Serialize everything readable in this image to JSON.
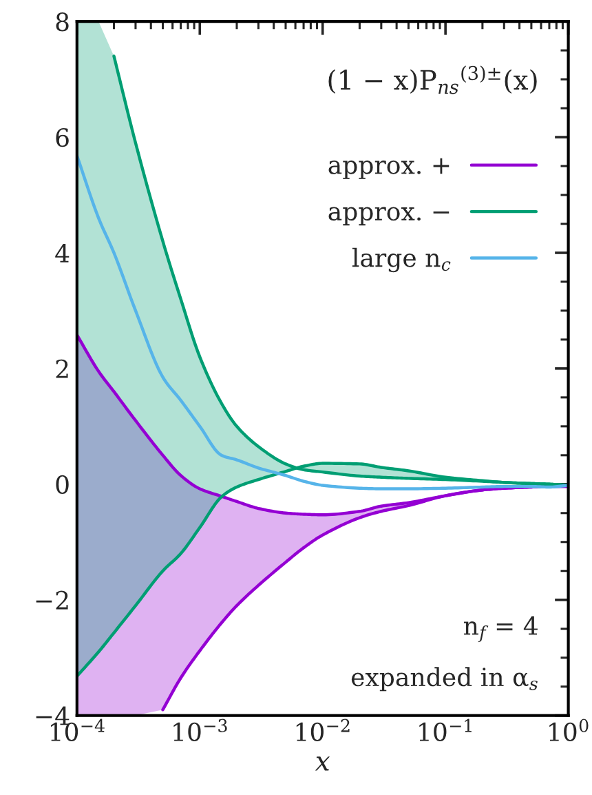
{
  "chart_data": {
    "type": "line",
    "xlabel": "x",
    "x": [
      0.0001,
      0.00015,
      0.0002,
      0.0003,
      0.0005,
      0.0007,
      0.001,
      0.0015,
      0.002,
      0.003,
      0.005,
      0.007,
      0.01,
      0.02,
      0.03,
      0.05,
      0.1,
      0.2,
      0.3,
      0.5,
      0.7,
      1
    ],
    "series": [
      {
        "name": "approx. +",
        "color": "#9400d3",
        "values": [
          2.58,
          1.95,
          1.6,
          1.1,
          0.5,
          0.15,
          -0.08,
          -0.21,
          -0.3,
          -0.42,
          -0.5,
          -0.52,
          -0.53,
          -0.47,
          -0.38,
          -0.32,
          -0.2,
          -0.1,
          -0.07,
          -0.05,
          -0.04,
          -0.04
        ],
        "upper": [
          2.58,
          1.95,
          1.6,
          1.1,
          0.5,
          0.15,
          -0.08,
          -0.21,
          -0.3,
          -0.42,
          -0.5,
          -0.52,
          -0.53,
          -0.47,
          -0.38,
          -0.32,
          -0.2,
          -0.1,
          -0.07,
          -0.05,
          -0.04,
          -0.04
        ],
        "lower": [
          -4,
          -4,
          -4,
          -4,
          -3.9,
          -3.35,
          -2.88,
          -2.4,
          -2.1,
          -1.75,
          -1.35,
          -1.1,
          -0.88,
          -0.58,
          -0.47,
          -0.37,
          -0.2,
          -0.1,
          -0.07,
          -0.05,
          -0.04,
          -0.04
        ]
      },
      {
        "color": "#9400d3",
        "values": [
          null,
          null,
          null,
          null,
          -3.9,
          -3.35,
          -2.88,
          -2.4,
          -2.1,
          -1.75,
          -1.35,
          -1.1,
          -0.88,
          -0.58,
          -0.47,
          -0.37,
          -0.2,
          -0.1,
          -0.07,
          -0.05,
          -0.04,
          -0.04
        ]
      },
      {
        "name": "approx. −",
        "color": "#009e73",
        "values": [
          null,
          null,
          7.4,
          5.9,
          4.2,
          3.2,
          2.2,
          1.4,
          1.0,
          0.65,
          0.35,
          0.25,
          0.21,
          0.14,
          0.12,
          0.1,
          0.08,
          0.05,
          0.03,
          0.01,
          0.0,
          -0.02
        ],
        "upper": [
          8,
          8,
          7.4,
          5.9,
          4.2,
          3.2,
          2.2,
          1.4,
          1.0,
          0.65,
          0.35,
          0.25,
          0.21,
          0.14,
          0.12,
          0.1,
          0.08,
          0.05,
          0.03,
          0.01,
          0.0,
          -0.02
        ],
        "lower": [
          -3.32,
          -2.9,
          -2.57,
          -2.1,
          -1.5,
          -1.2,
          -0.75,
          -0.22,
          -0.05,
          0.08,
          0.22,
          0.31,
          0.36,
          0.35,
          0.29,
          0.23,
          0.12,
          0.06,
          0.03,
          0.01,
          0.0,
          -0.02
        ]
      },
      {
        "color": "#009e73",
        "values": [
          -3.32,
          -2.9,
          -2.57,
          -2.1,
          -1.5,
          -1.2,
          -0.75,
          -0.22,
          -0.05,
          0.08,
          0.22,
          0.31,
          0.36,
          0.35,
          0.29,
          0.23,
          0.12,
          0.06,
          0.03,
          0.01,
          0.0,
          -0.02
        ]
      },
      {
        "name": "large n$_{c}$",
        "color": "#56b4e9",
        "values": [
          5.68,
          4.6,
          4.0,
          3.0,
          1.85,
          1.45,
          1.0,
          0.5,
          0.42,
          0.28,
          0.15,
          0.05,
          -0.02,
          -0.07,
          -0.08,
          -0.08,
          -0.07,
          -0.05,
          -0.04,
          -0.04,
          -0.05,
          -0.02
        ]
      }
    ],
    "log": "x",
    "xlim": [
      0.0001,
      1
    ],
    "xticks": [
      {
        "value": 0.0001,
        "label": "10$^{−4}$"
      },
      {
        "value": 0.001,
        "label": "10$^{−3}$"
      },
      {
        "value": 0.01,
        "label": "10$^{−2}$"
      },
      {
        "value": 0.1,
        "label": "10$^{−1}$"
      },
      {
        "value": 1,
        "label": "10$^{0}$"
      }
    ],
    "ylim": [
      -4,
      8
    ],
    "yticks": [
      {
        "value": -4,
        "label": "−4"
      },
      {
        "value": -2,
        "label": "−2"
      },
      0,
      2,
      4,
      6,
      8
    ],
    "legend": "top right",
    "grid": false,
    "annotations": [
      "(1 − x)P$_{ns}$$^{(3)±}$(x)",
      "n$_{f}$ = 4",
      "expanded in α$_{s}$"
    ]
  }
}
